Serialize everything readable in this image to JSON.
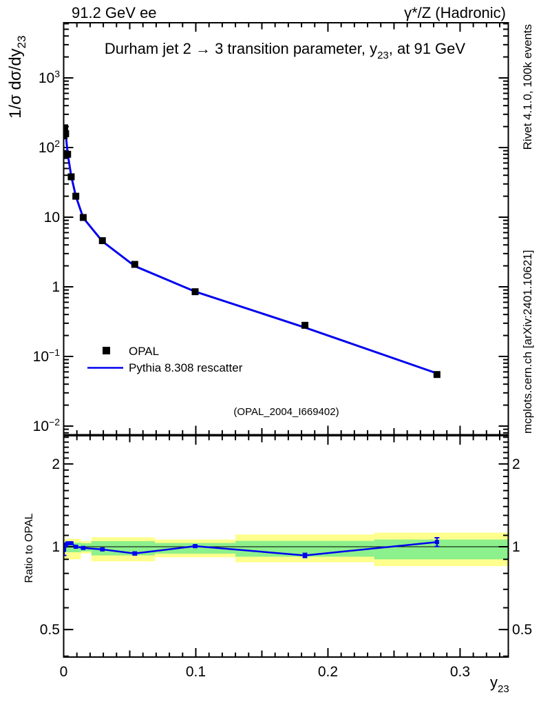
{
  "header": {
    "left": "91.2 GeV ee",
    "right": "γ*/Z (Hadronic)"
  },
  "plot_title": {
    "pre": "Durham jet 2 →  3 transition parameter, y",
    "sub": "23",
    "post": ", at 91 GeV"
  },
  "axis_titles": {
    "y_main_pre": "1/σ  dσ/dy",
    "y_main_sub": "23",
    "y_ratio": "Ratio to OPAL",
    "x_pre": "y",
    "x_sub": "23"
  },
  "legend": {
    "items": [
      {
        "label": "OPAL",
        "swatch": "filled-square-marker"
      },
      {
        "label": "Pythia 8.308 rescatter",
        "swatch": "line"
      }
    ]
  },
  "watermark": "(OPAL_2004_I669402)",
  "margin_notes": {
    "top_right": "Rivet 4.1.0,  100k events",
    "bottom_right": "mcplots.cern.ch [arXiv:2401.10621]"
  },
  "colors": {
    "mc_line": "#0000ee",
    "data_marker": "#000000",
    "band_yellow": "#feff8c",
    "band_green": "#8cf08c",
    "sidebar_text": "#999999",
    "watermark_text": "#b0b0b0",
    "frame": "#000000"
  },
  "chart_data": {
    "type": "line",
    "title": "Durham jet 2 → 3 transition parameter, y23, at 91 GeV",
    "xlabel": "y23",
    "ylabel_main": "1/σ dσ/dy23",
    "ylabel_ratio": "Ratio to OPAL",
    "x_range": [
      0,
      0.3365
    ],
    "y_range_main_log": [
      0.0076,
      6200
    ],
    "y_range_ratio_log": [
      0.397,
      2.53
    ],
    "x_major_ticks": [
      0,
      0.1,
      0.2,
      0.3
    ],
    "x_minor_tick_step": 0.01,
    "x_medium_tick_step": 0.05,
    "y_main_labeled_exponents": [
      3,
      2,
      1,
      0,
      -1,
      -2
    ],
    "y_ratio_labeled_ticks": [
      2,
      1,
      0.5
    ],
    "x": [
      0.0003,
      0.0008,
      0.0015,
      0.003,
      0.0057,
      0.0092,
      0.0148,
      0.0293,
      0.0538,
      0.0995,
      0.1826,
      0.2825
    ],
    "series": [
      {
        "name": "OPAL",
        "role": "reference-data",
        "marker": "filled-square",
        "values": [
          148,
          192,
          158,
          80,
          38,
          20,
          9.9,
          4.6,
          2.1,
          0.85,
          0.28,
          0.055
        ],
        "value_err_frac": [
          0.1,
          0.04,
          0.03,
          0.025,
          0.02,
          0.02,
          0.02,
          0.02,
          0.025,
          0.025,
          0.03,
          0.06
        ]
      },
      {
        "name": "Pythia 8.308 rescatter",
        "role": "mc-prediction",
        "style": "line",
        "ratio_to_data": [
          0.975,
          1.01,
          1.017,
          1.029,
          1.03,
          1.0,
          0.99,
          0.978,
          0.945,
          1.005,
          0.93,
          1.04
        ],
        "ratio_err": [
          0.045,
          0.012,
          0.01,
          0.008,
          0.007,
          0.007,
          0.008,
          0.009,
          0.012,
          0.01,
          0.016,
          0.038
        ]
      }
    ],
    "ratio_reference_line": 1,
    "ratio_bands": [
      {
        "x0": 0,
        "x1": 0.013,
        "yellow": [
          0.9,
          1.068
        ],
        "green": [
          0.955,
          1.035
        ]
      },
      {
        "x0": 0.013,
        "x1": 0.021,
        "yellow": [
          0.945,
          1.048
        ],
        "green": [
          0.962,
          1.03
        ]
      },
      {
        "x0": 0.021,
        "x1": 0.069,
        "yellow": [
          0.885,
          1.082
        ],
        "green": [
          0.93,
          1.048
        ]
      },
      {
        "x0": 0.069,
        "x1": 0.13,
        "yellow": [
          0.915,
          1.062
        ],
        "green": [
          0.944,
          1.032
        ]
      },
      {
        "x0": 0.13,
        "x1": 0.235,
        "yellow": [
          0.878,
          1.108
        ],
        "green": [
          0.92,
          1.05
        ]
      },
      {
        "x0": 0.235,
        "x1": 0.3365,
        "yellow": [
          0.85,
          1.125
        ],
        "green": [
          0.9,
          1.062
        ]
      }
    ]
  }
}
